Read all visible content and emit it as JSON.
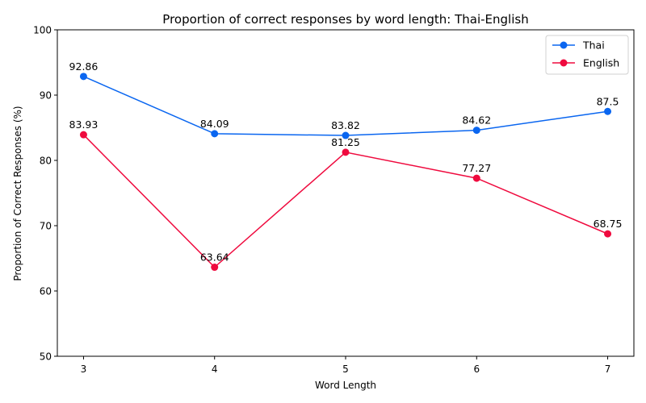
{
  "chart_data": {
    "type": "line",
    "title": "Proportion of correct responses by word length: Thai-English",
    "xlabel": "Word Length",
    "ylabel": "Proportion of Correct Responses (%)",
    "x": [
      3,
      4,
      5,
      6,
      7
    ],
    "x_tick_labels": [
      "3",
      "4",
      "5",
      "6",
      "7"
    ],
    "ylim": [
      50,
      100
    ],
    "y_ticks": [
      50,
      60,
      70,
      80,
      90,
      100
    ],
    "y_tick_labels": [
      "50",
      "60",
      "70",
      "80",
      "90",
      "100"
    ],
    "grid": false,
    "legend_position": "top-right",
    "series": [
      {
        "name": "Thai",
        "color": "#0a66f0",
        "values": [
          92.86,
          84.09,
          83.82,
          84.62,
          87.5
        ],
        "labels": [
          "92.86",
          "84.09",
          "83.82",
          "84.62",
          "87.5"
        ]
      },
      {
        "name": "English",
        "color": "#ef0a3e",
        "values": [
          83.93,
          63.64,
          81.25,
          77.27,
          68.75
        ],
        "labels": [
          "83.93",
          "63.64",
          "81.25",
          "77.27",
          "68.75"
        ]
      }
    ]
  }
}
